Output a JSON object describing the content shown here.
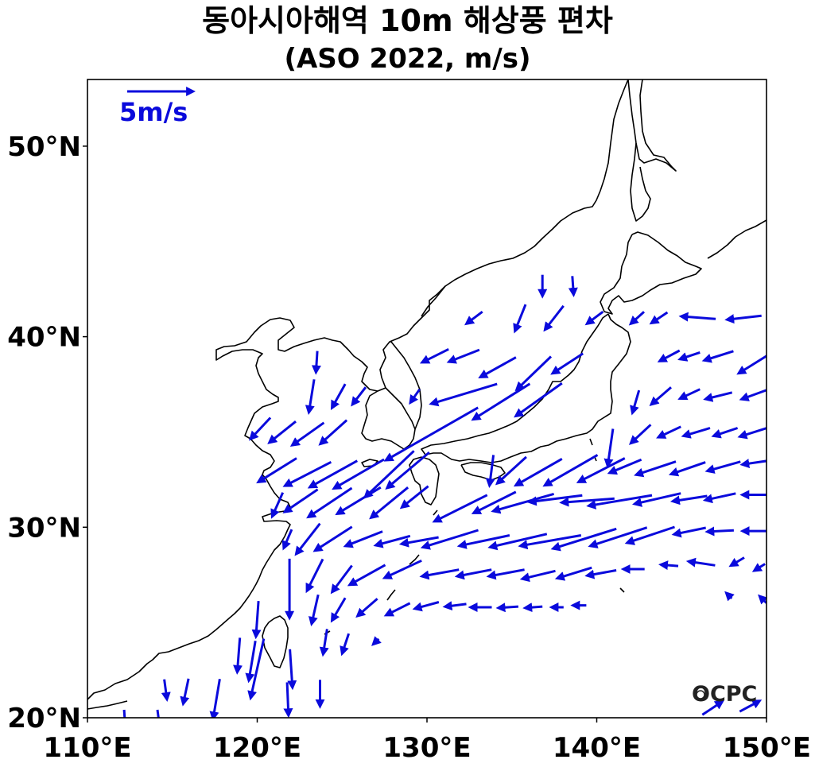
{
  "title": "동아시아해역 10m 해상풍 편차",
  "subtitle": "(ASO 2022, m/s)",
  "reference_vector": {
    "label": "5m/s",
    "magnitude": 5
  },
  "logo_text": "OCPC",
  "colors": {
    "vector": "#0a0adc",
    "coast": "#000000",
    "frame": "#000000"
  },
  "map_data": {
    "projection": "equirectangular",
    "lon_range": [
      110,
      150
    ],
    "lat_range": [
      20,
      53.5
    ],
    "x_ticks": [
      {
        "value": 110,
        "label": "110°E"
      },
      {
        "value": 120,
        "label": "120°E"
      },
      {
        "value": 130,
        "label": "130°E"
      },
      {
        "value": 140,
        "label": "140°E"
      },
      {
        "value": 150,
        "label": "150°E"
      }
    ],
    "y_ticks": [
      {
        "value": 20,
        "label": "20°N"
      },
      {
        "value": 30,
        "label": "30°N"
      },
      {
        "value": 40,
        "label": "40°N"
      },
      {
        "value": 50,
        "label": "50°N"
      }
    ],
    "vectors": [
      {
        "lon": 136.8,
        "lat": 42.7,
        "u": 0,
        "v": -1.6
      },
      {
        "lon": 138.6,
        "lat": 42.7,
        "u": 0.1,
        "v": -1.4
      },
      {
        "lon": 132.8,
        "lat": 41.0,
        "u": -1.2,
        "v": -0.9
      },
      {
        "lon": 135.5,
        "lat": 41.0,
        "u": -0.8,
        "v": -2.0
      },
      {
        "lon": 137.5,
        "lat": 41.0,
        "u": -1.4,
        "v": -1.8
      },
      {
        "lon": 139.9,
        "lat": 41.0,
        "u": -1.2,
        "v": -0.9
      },
      {
        "lon": 142.4,
        "lat": 41.0,
        "u": -1.0,
        "v": -0.9
      },
      {
        "lon": 143.7,
        "lat": 41.0,
        "u": -1.2,
        "v": -0.8
      },
      {
        "lon": 146.0,
        "lat": 41.0,
        "u": -2.6,
        "v": 0.2
      },
      {
        "lon": 148.7,
        "lat": 41.0,
        "u": -2.6,
        "v": -0.3
      },
      {
        "lon": 123.5,
        "lat": 38.7,
        "u": -0.1,
        "v": -1.6
      },
      {
        "lon": 130.5,
        "lat": 39.0,
        "u": -2.0,
        "v": -1.0
      },
      {
        "lon": 132.2,
        "lat": 39.0,
        "u": -2.3,
        "v": -0.9
      },
      {
        "lon": 134.2,
        "lat": 38.4,
        "u": -2.7,
        "v": -1.5
      },
      {
        "lon": 136.3,
        "lat": 38.1,
        "u": -2.6,
        "v": -2.5
      },
      {
        "lon": 138.3,
        "lat": 38.6,
        "u": -2.3,
        "v": -1.5
      },
      {
        "lon": 144.3,
        "lat": 39.0,
        "u": -1.5,
        "v": -0.8
      },
      {
        "lon": 145.5,
        "lat": 39.0,
        "u": -1.5,
        "v": -0.5
      },
      {
        "lon": 147.2,
        "lat": 39.0,
        "u": -2.2,
        "v": -0.7
      },
      {
        "lon": 149.3,
        "lat": 38.6,
        "u": -2.4,
        "v": -1.5
      },
      {
        "lon": 123.2,
        "lat": 36.9,
        "u": -0.4,
        "v": -2.5
      },
      {
        "lon": 124.8,
        "lat": 36.9,
        "u": -1.0,
        "v": -1.8
      },
      {
        "lon": 126.0,
        "lat": 36.9,
        "u": -1.0,
        "v": -1.3
      },
      {
        "lon": 129.3,
        "lat": 36.9,
        "u": -0.7,
        "v": -1.0
      },
      {
        "lon": 132.2,
        "lat": 37.0,
        "u": -5.0,
        "v": -1.5
      },
      {
        "lon": 134.4,
        "lat": 36.6,
        "u": -4.3,
        "v": -2.7
      },
      {
        "lon": 136.6,
        "lat": 36.7,
        "u": -3.5,
        "v": -2.5
      },
      {
        "lon": 142.3,
        "lat": 36.6,
        "u": -0.5,
        "v": -1.7
      },
      {
        "lon": 143.8,
        "lat": 36.9,
        "u": -1.5,
        "v": -1.3
      },
      {
        "lon": 145.5,
        "lat": 37.0,
        "u": -1.5,
        "v": -0.7
      },
      {
        "lon": 147.2,
        "lat": 36.9,
        "u": -2.0,
        "v": -0.5
      },
      {
        "lon": 149.4,
        "lat": 37.0,
        "u": -2.2,
        "v": -0.8
      },
      {
        "lon": 120.2,
        "lat": 35.2,
        "u": -1.5,
        "v": -1.6
      },
      {
        "lon": 121.5,
        "lat": 35.0,
        "u": -2.0,
        "v": -1.6
      },
      {
        "lon": 123.0,
        "lat": 34.9,
        "u": -2.4,
        "v": -1.7
      },
      {
        "lon": 124.5,
        "lat": 35.0,
        "u": -2.0,
        "v": -1.8
      },
      {
        "lon": 130.3,
        "lat": 34.9,
        "u": -7.0,
        "v": -4.0
      },
      {
        "lon": 140.8,
        "lat": 34.2,
        "u": -0.4,
        "v": -2.8
      },
      {
        "lon": 142.6,
        "lat": 34.9,
        "u": -1.5,
        "v": -1.4
      },
      {
        "lon": 144.3,
        "lat": 35.0,
        "u": -1.7,
        "v": -0.8
      },
      {
        "lon": 145.9,
        "lat": 35.0,
        "u": -2.0,
        "v": -0.6
      },
      {
        "lon": 147.6,
        "lat": 35.0,
        "u": -1.8,
        "v": -0.6
      },
      {
        "lon": 149.3,
        "lat": 35.0,
        "u": -2.2,
        "v": -0.7
      },
      {
        "lon": 121.2,
        "lat": 33.0,
        "u": -2.9,
        "v": -1.8
      },
      {
        "lon": 123.0,
        "lat": 32.8,
        "u": -3.5,
        "v": -1.8
      },
      {
        "lon": 124.5,
        "lat": 32.8,
        "u": -3.6,
        "v": -2.0
      },
      {
        "lon": 126.0,
        "lat": 32.8,
        "u": -3.8,
        "v": -2.2
      },
      {
        "lon": 127.8,
        "lat": 32.8,
        "u": -3.7,
        "v": -3.5
      },
      {
        "lon": 128.9,
        "lat": 33.0,
        "u": -3.2,
        "v": -2.7
      },
      {
        "lon": 133.8,
        "lat": 33.0,
        "u": -0.3,
        "v": -2.3
      },
      {
        "lon": 135.0,
        "lat": 33.0,
        "u": -2.2,
        "v": -2.0
      },
      {
        "lon": 136.6,
        "lat": 32.9,
        "u": -3.5,
        "v": -2.0
      },
      {
        "lon": 138.5,
        "lat": 33.0,
        "u": -4.0,
        "v": -2.3
      },
      {
        "lon": 140.3,
        "lat": 33.0,
        "u": -3.5,
        "v": -1.8
      },
      {
        "lon": 141.7,
        "lat": 33.2,
        "u": -2.4,
        "v": -1.0
      },
      {
        "lon": 143.5,
        "lat": 33.1,
        "u": -3.0,
        "v": -1.0
      },
      {
        "lon": 145.4,
        "lat": 33.1,
        "u": -2.6,
        "v": -0.9
      },
      {
        "lon": 147.5,
        "lat": 33.2,
        "u": -2.5,
        "v": -0.7
      },
      {
        "lon": 149.4,
        "lat": 33.4,
        "u": -2.1,
        "v": -0.3
      },
      {
        "lon": 121.2,
        "lat": 31.2,
        "u": -0.8,
        "v": -1.8
      },
      {
        "lon": 122.6,
        "lat": 31.4,
        "u": -2.5,
        "v": -1.7
      },
      {
        "lon": 124.3,
        "lat": 31.3,
        "u": -3.3,
        "v": -2.2
      },
      {
        "lon": 126.0,
        "lat": 31.4,
        "u": -3.3,
        "v": -2.0
      },
      {
        "lon": 127.8,
        "lat": 31.3,
        "u": -2.8,
        "v": -2.3
      },
      {
        "lon": 129.3,
        "lat": 31.6,
        "u": -2.0,
        "v": -1.6
      },
      {
        "lon": 132.0,
        "lat": 31.0,
        "u": -4.0,
        "v": -2.0
      },
      {
        "lon": 134.0,
        "lat": 31.3,
        "u": -3.2,
        "v": -1.6
      },
      {
        "lon": 135.7,
        "lat": 31.3,
        "u": -4.6,
        "v": -1.3
      },
      {
        "lon": 137.6,
        "lat": 31.5,
        "u": -4.0,
        "v": -0.5
      },
      {
        "lon": 139.5,
        "lat": 31.4,
        "u": -4.0,
        "v": -0.3
      },
      {
        "lon": 141.4,
        "lat": 31.4,
        "u": -4.8,
        "v": -0.8
      },
      {
        "lon": 143.6,
        "lat": 31.5,
        "u": -3.5,
        "v": -0.8
      },
      {
        "lon": 145.5,
        "lat": 31.5,
        "u": -2.6,
        "v": -0.4
      },
      {
        "lon": 147.3,
        "lat": 31.6,
        "u": -2.3,
        "v": -0.5
      },
      {
        "lon": 149.4,
        "lat": 31.7,
        "u": -2.1,
        "v": 0.0
      },
      {
        "lon": 121.8,
        "lat": 29.4,
        "u": -0.6,
        "v": -1.4
      },
      {
        "lon": 123.0,
        "lat": 29.4,
        "u": -1.8,
        "v": -2.3
      },
      {
        "lon": 124.5,
        "lat": 29.4,
        "u": -2.8,
        "v": -1.8
      },
      {
        "lon": 126.3,
        "lat": 29.4,
        "u": -2.8,
        "v": -1.1
      },
      {
        "lon": 128.0,
        "lat": 29.3,
        "u": -2.6,
        "v": -0.7
      },
      {
        "lon": 129.6,
        "lat": 29.3,
        "u": -2.8,
        "v": -0.5
      },
      {
        "lon": 131.4,
        "lat": 29.4,
        "u": -4.2,
        "v": -1.3
      },
      {
        "lon": 133.4,
        "lat": 29.3,
        "u": -3.8,
        "v": -0.8
      },
      {
        "lon": 135.4,
        "lat": 29.3,
        "u": -4.3,
        "v": -1.0
      },
      {
        "lon": 137.3,
        "lat": 29.3,
        "u": -4.6,
        "v": -0.8
      },
      {
        "lon": 139.3,
        "lat": 29.4,
        "u": -4.8,
        "v": -1.5
      },
      {
        "lon": 141.3,
        "lat": 29.5,
        "u": -4.3,
        "v": -1.4
      },
      {
        "lon": 143.2,
        "lat": 29.6,
        "u": -3.6,
        "v": -1.2
      },
      {
        "lon": 145.5,
        "lat": 29.8,
        "u": -2.4,
        "v": -0.5
      },
      {
        "lon": 147.3,
        "lat": 29.8,
        "u": -2.0,
        "v": -0.1
      },
      {
        "lon": 149.3,
        "lat": 29.8,
        "u": -1.8,
        "v": 0.0
      },
      {
        "lon": 121.9,
        "lat": 26.8,
        "u": 0.0,
        "v": -4.5
      },
      {
        "lon": 123.4,
        "lat": 27.5,
        "u": -1.2,
        "v": -2.4
      },
      {
        "lon": 125.0,
        "lat": 27.3,
        "u": -1.5,
        "v": -2.0
      },
      {
        "lon": 126.5,
        "lat": 27.5,
        "u": -2.7,
        "v": -1.5
      },
      {
        "lon": 128.6,
        "lat": 27.8,
        "u": -2.8,
        "v": -1.3
      },
      {
        "lon": 130.8,
        "lat": 27.6,
        "u": -2.8,
        "v": -0.5
      },
      {
        "lon": 132.8,
        "lat": 27.6,
        "u": -2.6,
        "v": -0.5
      },
      {
        "lon": 134.7,
        "lat": 27.6,
        "u": -2.7,
        "v": -0.5
      },
      {
        "lon": 136.6,
        "lat": 27.5,
        "u": -2.5,
        "v": -0.6
      },
      {
        "lon": 138.7,
        "lat": 27.6,
        "u": -2.6,
        "v": -0.8
      },
      {
        "lon": 140.3,
        "lat": 27.6,
        "u": -2.2,
        "v": -0.4
      },
      {
        "lon": 142.2,
        "lat": 27.8,
        "u": -1.6,
        "v": 0.0
      },
      {
        "lon": 144.3,
        "lat": 28.0,
        "u": -1.3,
        "v": 0.1
      },
      {
        "lon": 146.2,
        "lat": 28.1,
        "u": -2.0,
        "v": 0.3
      },
      {
        "lon": 148.3,
        "lat": 28.2,
        "u": -1.0,
        "v": -0.6
      },
      {
        "lon": 149.6,
        "lat": 27.9,
        "u": -0.8,
        "v": -0.5
      },
      {
        "lon": 120.0,
        "lat": 25.2,
        "u": -0.2,
        "v": -2.7
      },
      {
        "lon": 123.4,
        "lat": 25.7,
        "u": -0.5,
        "v": -2.2
      },
      {
        "lon": 124.8,
        "lat": 25.7,
        "u": -1.0,
        "v": -1.7
      },
      {
        "lon": 126.5,
        "lat": 25.8,
        "u": -1.5,
        "v": -1.3
      },
      {
        "lon": 128.3,
        "lat": 25.7,
        "u": -1.8,
        "v": -0.9
      },
      {
        "lon": 130.0,
        "lat": 25.9,
        "u": -1.8,
        "v": -0.5
      },
      {
        "lon": 131.7,
        "lat": 25.9,
        "u": -1.6,
        "v": -0.2
      },
      {
        "lon": 133.2,
        "lat": 25.8,
        "u": -1.6,
        "v": 0.0
      },
      {
        "lon": 134.8,
        "lat": 25.8,
        "u": -1.5,
        "v": -0.1
      },
      {
        "lon": 136.3,
        "lat": 25.8,
        "u": -1.3,
        "v": -0.1
      },
      {
        "lon": 137.7,
        "lat": 25.8,
        "u": -0.9,
        "v": 0.0
      },
      {
        "lon": 139.0,
        "lat": 25.9,
        "u": -1.0,
        "v": 0.0
      },
      {
        "lon": 147.8,
        "lat": 26.4,
        "u": -0.4,
        "v": 0.4
      },
      {
        "lon": 149.8,
        "lat": 26.2,
        "u": -0.5,
        "v": 0.5
      },
      {
        "lon": 118.9,
        "lat": 23.3,
        "u": -0.2,
        "v": -2.6
      },
      {
        "lon": 119.7,
        "lat": 23.0,
        "u": -0.5,
        "v": -3.0
      },
      {
        "lon": 120.0,
        "lat": 22.6,
        "u": -1.0,
        "v": -4.5
      },
      {
        "lon": 122.0,
        "lat": 22.6,
        "u": 0.2,
        "v": -2.9
      },
      {
        "lon": 124.0,
        "lat": 24.0,
        "u": -0.3,
        "v": -1.9
      },
      {
        "lon": 125.2,
        "lat": 23.9,
        "u": -0.5,
        "v": -1.5
      },
      {
        "lon": 127.0,
        "lat": 24.0,
        "u": -0.4,
        "v": -0.4
      },
      {
        "lon": 114.6,
        "lat": 21.5,
        "u": 0.2,
        "v": -1.5
      },
      {
        "lon": 115.8,
        "lat": 21.4,
        "u": -0.4,
        "v": -1.9
      },
      {
        "lon": 117.6,
        "lat": 21.0,
        "u": -0.5,
        "v": -3.0
      },
      {
        "lon": 121.8,
        "lat": 21.0,
        "u": 0.1,
        "v": -2.5
      },
      {
        "lon": 123.7,
        "lat": 21.3,
        "u": 0.0,
        "v": -2.0
      },
      {
        "lon": 112.2,
        "lat": 19.9,
        "u": 0.1,
        "v": -1.5
      },
      {
        "lon": 114.2,
        "lat": 19.9,
        "u": 0.2,
        "v": -1.5
      },
      {
        "lon": 146.8,
        "lat": 20.5,
        "u": 1.5,
        "v": 1.0
      },
      {
        "lon": 149.0,
        "lat": 20.6,
        "u": 1.5,
        "v": 0.8
      }
    ]
  }
}
